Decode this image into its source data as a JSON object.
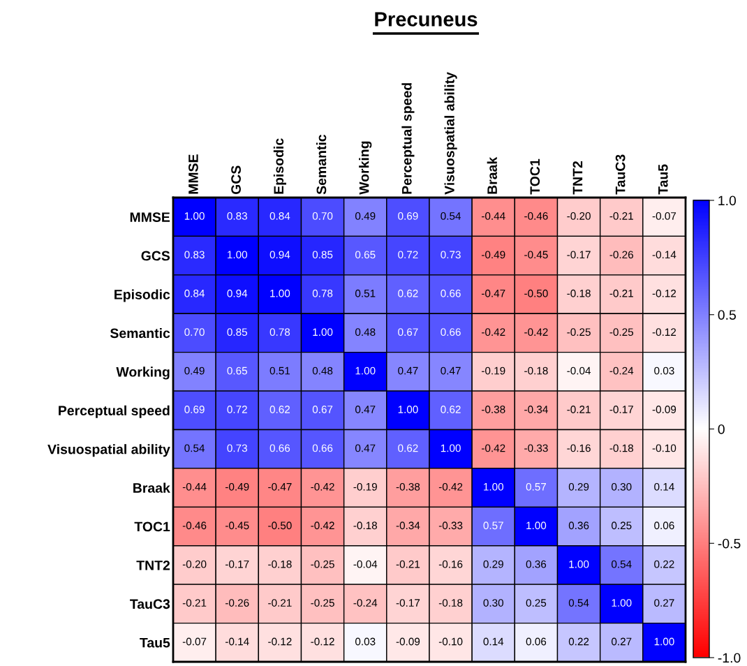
{
  "chart_data": {
    "type": "heatmap",
    "title": "Precuneus",
    "categories": [
      "MMSE",
      "GCS",
      "Episodic",
      "Semantic",
      "Working",
      "Perceptual speed",
      "Visuospatial ability",
      "Braak",
      "TOC1",
      "TNT2",
      "TauC3",
      "Tau5"
    ],
    "y_categories": [
      "MMSE",
      "GCS",
      "Episodic",
      "Semantic",
      "Working",
      "Perceptual speed",
      "Visuospatial ability",
      "Braak",
      "TOC1",
      "TNT2",
      "TauC3",
      "Tau5"
    ],
    "cells": [
      [
        1.0,
        0.83,
        0.84,
        0.7,
        0.49,
        0.69,
        0.54,
        -0.44,
        -0.46,
        -0.2,
        -0.21,
        -0.07
      ],
      [
        0.83,
        1.0,
        0.94,
        0.85,
        0.65,
        0.72,
        0.73,
        -0.49,
        -0.45,
        -0.17,
        -0.26,
        -0.14
      ],
      [
        0.84,
        0.94,
        1.0,
        0.78,
        0.51,
        0.62,
        0.66,
        -0.47,
        -0.5,
        -0.18,
        -0.21,
        -0.12
      ],
      [
        0.7,
        0.85,
        0.78,
        1.0,
        0.48,
        0.67,
        0.66,
        -0.42,
        -0.42,
        -0.25,
        -0.25,
        -0.12
      ],
      [
        0.49,
        0.65,
        0.51,
        0.48,
        1.0,
        0.47,
        0.47,
        -0.19,
        -0.18,
        -0.04,
        -0.24,
        0.03
      ],
      [
        0.69,
        0.72,
        0.62,
        0.67,
        0.47,
        1.0,
        0.62,
        -0.38,
        -0.34,
        -0.21,
        -0.17,
        -0.09
      ],
      [
        0.54,
        0.73,
        0.66,
        0.66,
        0.47,
        0.62,
        1.0,
        -0.42,
        -0.33,
        -0.16,
        -0.18,
        -0.1
      ],
      [
        -0.44,
        -0.49,
        -0.47,
        -0.42,
        -0.19,
        -0.38,
        -0.42,
        1.0,
        0.57,
        0.29,
        0.3,
        0.14
      ],
      [
        -0.46,
        -0.45,
        -0.5,
        -0.42,
        -0.18,
        -0.34,
        -0.33,
        0.57,
        1.0,
        0.36,
        0.25,
        0.06
      ],
      [
        -0.2,
        -0.17,
        -0.18,
        -0.25,
        -0.04,
        -0.21,
        -0.16,
        0.29,
        0.36,
        1.0,
        0.54,
        0.22
      ],
      [
        -0.21,
        -0.26,
        -0.21,
        -0.25,
        -0.24,
        -0.17,
        -0.18,
        0.3,
        0.25,
        0.54,
        1.0,
        0.27
      ],
      [
        -0.07,
        -0.14,
        -0.12,
        -0.12,
        0.03,
        -0.09,
        -0.1,
        0.14,
        0.06,
        0.22,
        0.27,
        1.0
      ]
    ],
    "cell_labels": [
      [
        "1.00",
        "0.83",
        "0.84",
        "0.70",
        "0.49",
        "0.69",
        "0.54",
        "-0.44",
        "-0.46",
        "-0.20",
        "-0.21",
        "-0.07"
      ],
      [
        "0.83",
        "1.00",
        "0.94",
        "0.85",
        "0.65",
        "0.72",
        "0.73",
        "-0.49",
        "-0.45",
        "-0.17",
        "-0.26",
        "-0.14"
      ],
      [
        "0.84",
        "0.94",
        "1.00",
        "0.78",
        "0.51",
        "0.62",
        "0.66",
        "-0.47",
        "-0.50",
        "-0.18",
        "-0.21",
        "-0.12"
      ],
      [
        "0.70",
        "0.85",
        "0.78",
        "1.00",
        "0.48",
        "0.67",
        "0.66",
        "-0.42",
        "-0.42",
        "-0.25",
        "-0.25",
        "-0.12"
      ],
      [
        "0.49",
        "0.65",
        "0.51",
        "0.48",
        "1.00",
        "0.47",
        "0.47",
        "-0.19",
        "-0.18",
        "-0.04",
        "-0.24",
        "0.03"
      ],
      [
        "0.69",
        "0.72",
        "0.62",
        "0.67",
        "0.47",
        "1.00",
        "0.62",
        "-0.38",
        "-0.34",
        "-0.21",
        "-0.17",
        "-0.09"
      ],
      [
        "0.54",
        "0.73",
        "0.66",
        "0.66",
        "0.47",
        "0.62",
        "1.00",
        "-0.42",
        "-0.33",
        "-0.16",
        "-0.18",
        "-0.10"
      ],
      [
        "-0.44",
        "-0.49",
        "-0.47",
        "-0.42",
        "-0.19",
        "-0.38",
        "-0.42",
        "1.00",
        "0.57",
        "0.29",
        "0.30",
        "0.14"
      ],
      [
        "-0.46",
        "-0.45",
        "-0.50",
        "-0.42",
        "-0.18",
        "-0.34",
        "-0.33",
        "0.57",
        "1.00",
        "0.36",
        "0.25",
        "0.06"
      ],
      [
        "-0.20",
        "-0.17",
        "-0.18",
        "-0.25",
        "-0.04",
        "-0.21",
        "-0.16",
        "0.29",
        "0.36",
        "1.00",
        "0.54",
        "0.22"
      ],
      [
        "-0.21",
        "-0.26",
        "-0.21",
        "-0.25",
        "-0.24",
        "-0.17",
        "-0.18",
        "0.30",
        "0.25",
        "0.54",
        "1.00",
        "0.27"
      ],
      [
        "-0.07",
        "-0.14",
        "-0.12",
        "-0.12",
        "0.03",
        "-0.09",
        "-0.10",
        "0.14",
        "0.06",
        "0.22",
        "0.27",
        "1.00"
      ]
    ],
    "clim": [
      -1.0,
      1.0
    ],
    "cticks": [
      {
        "value": 1.0,
        "label": "1.0"
      },
      {
        "value": 0.5,
        "label": "0.5"
      },
      0,
      {
        "value": -0.5,
        "label": "-0.5"
      },
      {
        "value": -1.0,
        "label": "-1.0"
      }
    ]
  }
}
